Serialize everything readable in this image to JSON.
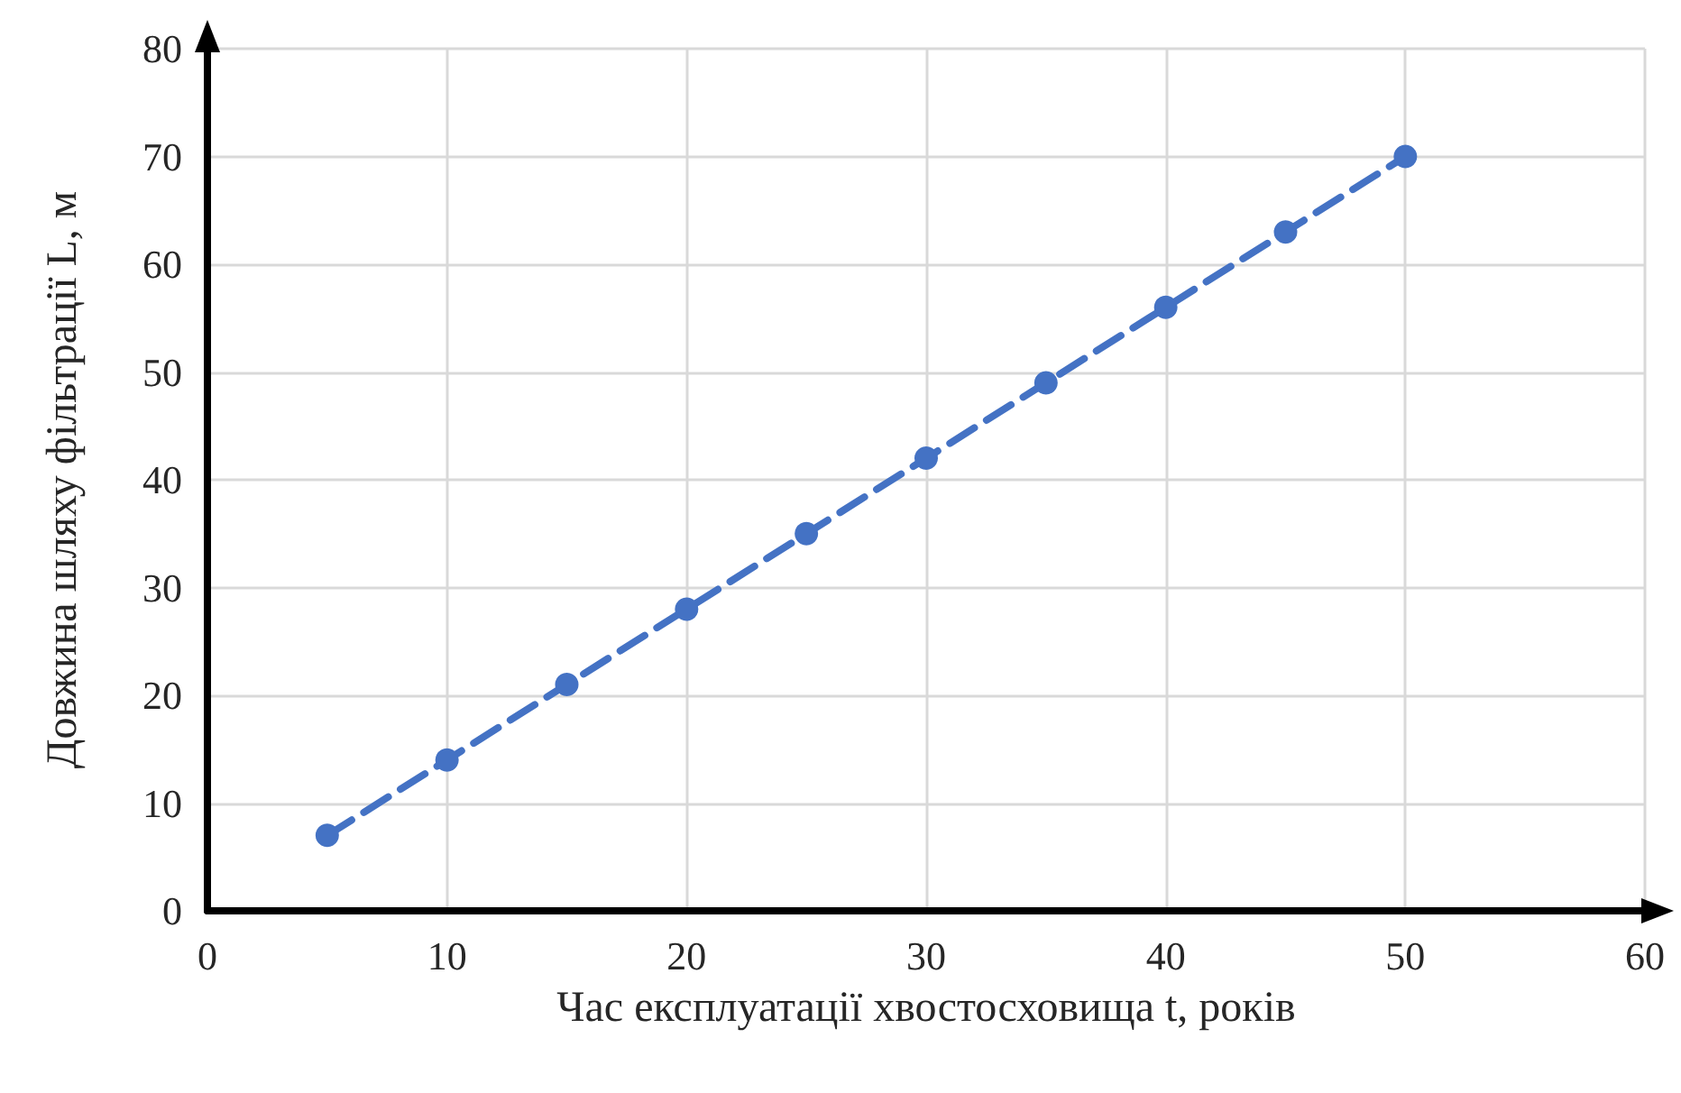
{
  "chart_data": {
    "type": "line",
    "xlabel": "Час експлуатації хвостосховища t, років",
    "ylabel": "Довжина шляху фільтрації L, м",
    "x": [
      5,
      10,
      15,
      20,
      25,
      30,
      35,
      40,
      45,
      50
    ],
    "series": [
      {
        "color": "#4472c4",
        "values": [
          7,
          14,
          21,
          28,
          35,
          42,
          49,
          56,
          63,
          70
        ]
      }
    ],
    "xlim": [
      0,
      60
    ],
    "xticks": [
      0,
      10,
      20,
      30,
      40,
      50,
      60
    ],
    "ylim": [
      0,
      80
    ],
    "yticks": [
      0,
      10,
      20,
      30,
      40,
      50,
      60,
      70,
      80
    ],
    "grid": true,
    "marker": "circle",
    "line_style": "dashed"
  }
}
